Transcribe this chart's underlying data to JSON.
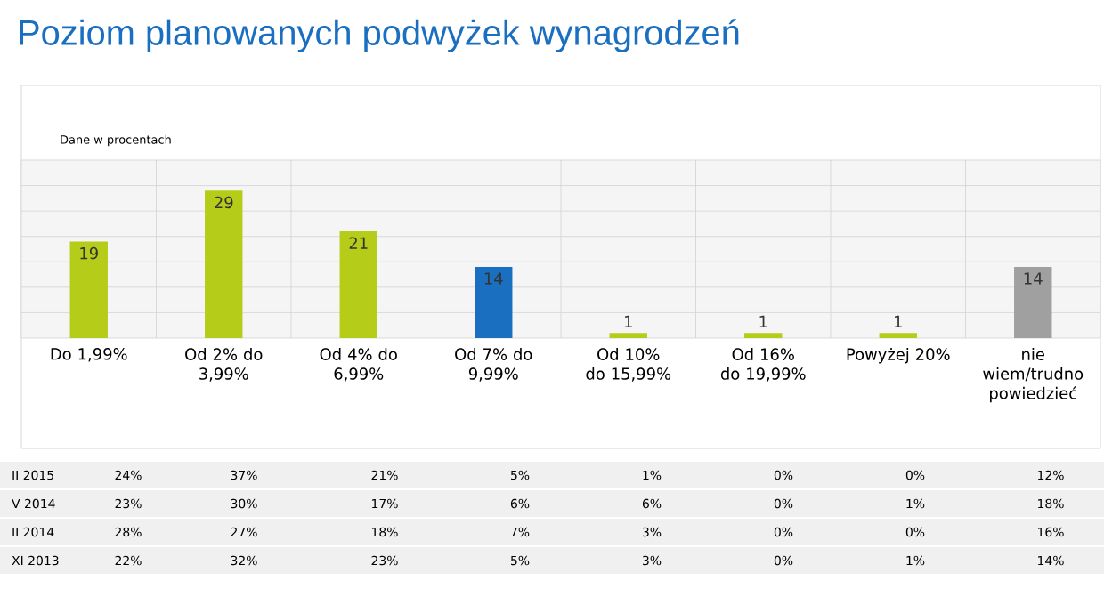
{
  "chart_data": {
    "type": "bar",
    "title": "Poziom planowanych podwyżek wynagrodzeń",
    "subtitle": "Dane w procentach",
    "categories": [
      "Do 1,99%",
      "Od 2% do 3,99%",
      "Od 4% do 6,99%",
      "Od 7% do 9,99%",
      "Od 10% do 15,99%",
      "Od 16% do 19,99%",
      "Powyżej 20%",
      "nie wiem/trudno powiedzieć"
    ],
    "values": [
      19,
      29,
      21,
      14,
      1,
      1,
      1,
      14
    ],
    "colors": [
      "#b5cc18",
      "#b5cc18",
      "#b5cc18",
      "#1a6fc1",
      "#b5cc18",
      "#b5cc18",
      "#b5cc18",
      "#a0a0a0"
    ],
    "ylim": [
      0,
      35
    ],
    "yticks": [
      {
        "value": 0,
        "label": null
      },
      {
        "value": 5,
        "label": null
      },
      {
        "value": 10,
        "label": null
      },
      {
        "value": 15,
        "label": null
      },
      {
        "value": 20,
        "label": null
      },
      {
        "value": 25,
        "label": null
      },
      {
        "value": 30,
        "label": null
      },
      {
        "value": 35,
        "label": null
      }
    ],
    "tick_labels": "x",
    "grid": "y",
    "data_labels": true,
    "annotations": [
      "II 2015",
      "24%",
      "37%",
      "21%",
      "5%",
      "1%",
      "0%",
      "0%",
      "12%",
      "V 2014",
      "23%",
      "30%",
      "17%",
      "6%",
      "6%",
      "0%",
      "1%",
      "18%",
      "II 2014",
      "28%",
      "27%",
      "18%",
      "7%",
      "3%",
      "0%",
      "0%",
      "16%",
      "XI 2013",
      "22%",
      "32%",
      "23%",
      "5%",
      "3%",
      "0%",
      "1%",
      "14%"
    ]
  }
}
